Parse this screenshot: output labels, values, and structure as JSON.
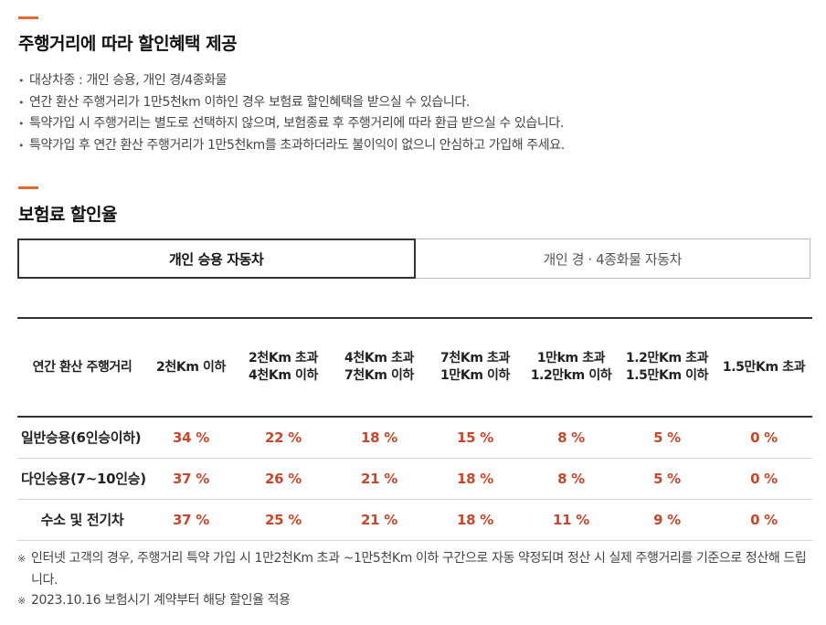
{
  "section1": {
    "title": "주행거리에 따라 할인혜택 제공",
    "bullets": [
      "대상차종 : 개인 승용, 개인 경/4종화물",
      "연간 환산 주행거리가 1만5천km 이하인 경우 보험료 할인혜택을 받으실 수 있습니다.",
      "특약가입 시 주행거리는 별도로 선택하지 않으며, 보험종료 후 주행거리에 따라 환급 받으실 수 있습니다.",
      "특약가입 후 연간 환산 주행거리가 1만5천km를 초과하더라도 불이익이 없으니 안심하고 가입해 주세요."
    ]
  },
  "section2": {
    "title": "보험료 할인율"
  },
  "tabs": [
    {
      "label": "개인 승용 자동차",
      "active": true
    },
    {
      "label": "개인 경 · 4종화물 자동차",
      "active": false
    }
  ],
  "table": {
    "headers": [
      "연간 환산 주행거리",
      "2천Km 이하",
      "2천Km 초과\n4천Km 이하",
      "4천Km 초과\n7천Km 이하",
      "7천Km 초과\n1만Km 이하",
      "1만km 초과\n1.2만km 이하",
      "1.2만Km 초과\n1.5만Km 이하",
      "1.5만Km 초과"
    ],
    "rows": [
      {
        "label": "일반승용(6인승이하)",
        "values": [
          "34 %",
          "22 %",
          "18 %",
          "15 %",
          "8 %",
          "5 %",
          "0 %"
        ]
      },
      {
        "label": "다인승용(7~10인승)",
        "values": [
          "37 %",
          "26 %",
          "21 %",
          "18 %",
          "8 %",
          "5 %",
          "0 %"
        ]
      },
      {
        "label": "수소 및 전기차",
        "values": [
          "37 %",
          "25 %",
          "21 %",
          "18 %",
          "11 %",
          "9 %",
          "0 %"
        ]
      }
    ]
  },
  "notes": [
    "인터넷 고객의 경우, 주행거리 특약 가입 시 1만2천Km 초과 ~1만5천Km 이하 구간으로 자동 약정되며 정산 시 실제 주행거리를 기준으로 정산해 드립니다.",
    "2023.10.16 보험시기 계약부터 해당 할인율 적용"
  ],
  "note_mark": "※",
  "colors": {
    "accent": "#e36a2e",
    "rate": "#c8472a"
  }
}
